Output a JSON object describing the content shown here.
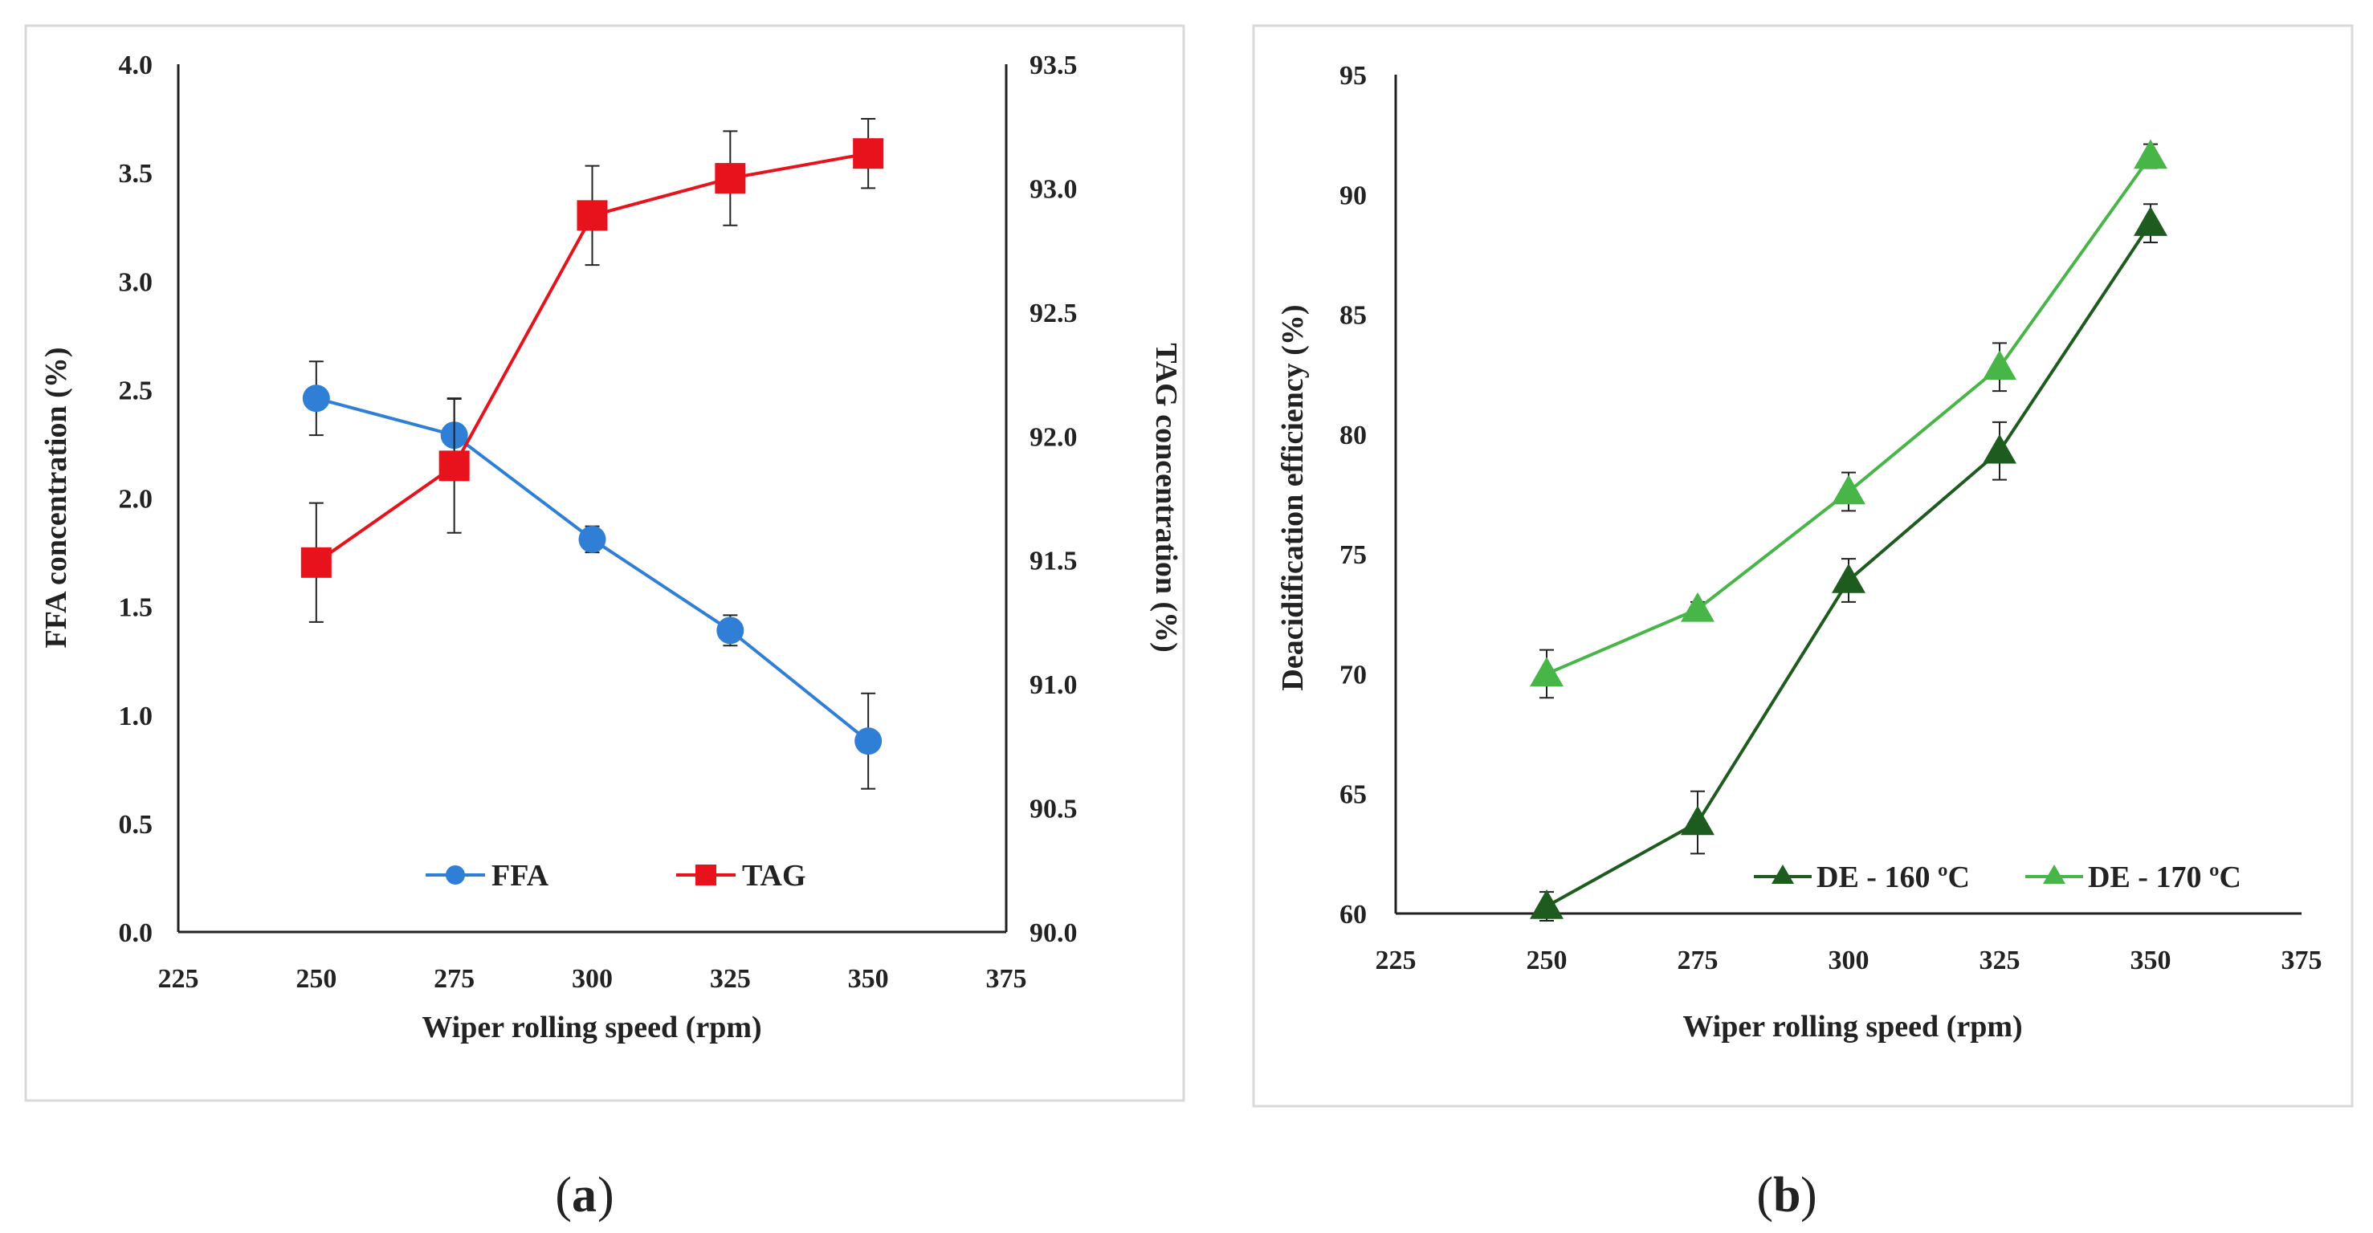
{
  "panels": {
    "a": {
      "caption_letter": "a"
    },
    "b": {
      "caption_letter": "b"
    }
  },
  "chart_data": [
    {
      "type": "line",
      "title": "",
      "xlabel": "Wiper rolling speed (rpm)",
      "ylabel": "FFA concentration (%)",
      "y2label": "TAG concentration (%)",
      "xlim": [
        225,
        375
      ],
      "xticks": [
        "225",
        "250",
        "275",
        "300",
        "325",
        "350",
        "375"
      ],
      "ylim": [
        0,
        4
      ],
      "yticks": [
        "0.0",
        "0.5",
        "1.0",
        "1.5",
        "2.0",
        "2.5",
        "3.0",
        "3.5",
        "4.0"
      ],
      "y2lim": [
        90,
        93.5
      ],
      "y2ticks": [
        "90.0",
        "90.5",
        "91.0",
        "91.5",
        "92.0",
        "92.5",
        "93.0",
        "93.5"
      ],
      "grid": false,
      "legend_position": "bottom",
      "series": [
        {
          "name": "FFA",
          "axis": "left",
          "marker": "circle",
          "color": "#2f7fd6",
          "x": [
            250,
            275,
            300,
            325,
            350
          ],
          "y": [
            2.46,
            2.29,
            1.81,
            1.39,
            0.88
          ],
          "error": [
            0.17,
            0.17,
            0.06,
            0.07,
            0.22
          ]
        },
        {
          "name": "TAG",
          "axis": "right",
          "marker": "square",
          "color": "#e8121c",
          "x": [
            250,
            275,
            300,
            325,
            350
          ],
          "y": [
            91.49,
            91.88,
            92.89,
            93.04,
            93.14
          ],
          "error": [
            0.24,
            0.27,
            0.2,
            0.19,
            0.14
          ]
        }
      ]
    },
    {
      "type": "line",
      "title": "",
      "xlabel": "Wiper rolling speed (rpm)",
      "ylabel": "Deacidification efficiency (%)",
      "xlim": [
        225,
        375
      ],
      "xticks": [
        "225",
        "250",
        "275",
        "300",
        "325",
        "350",
        "375"
      ],
      "ylim": [
        60,
        95
      ],
      "yticks": [
        "60",
        "65",
        "70",
        "75",
        "80",
        "85",
        "90",
        "95"
      ],
      "grid": false,
      "legend_position": "bottom-right",
      "series": [
        {
          "name": "DE - 160 ºC",
          "marker": "triangle",
          "color": "#1e5b1e",
          "x": [
            250,
            275,
            300,
            325,
            350
          ],
          "y": [
            60.3,
            63.8,
            73.9,
            79.3,
            88.8
          ],
          "error": [
            0.6,
            1.3,
            0.9,
            1.2,
            0.8
          ]
        },
        {
          "name": "DE - 170 ºC",
          "marker": "triangle",
          "color": "#48b548",
          "x": [
            250,
            275,
            300,
            325,
            350
          ],
          "y": [
            70.0,
            72.7,
            77.6,
            82.8,
            91.6
          ],
          "error": [
            1.0,
            0.3,
            0.8,
            1.0,
            0.5
          ]
        }
      ]
    }
  ]
}
